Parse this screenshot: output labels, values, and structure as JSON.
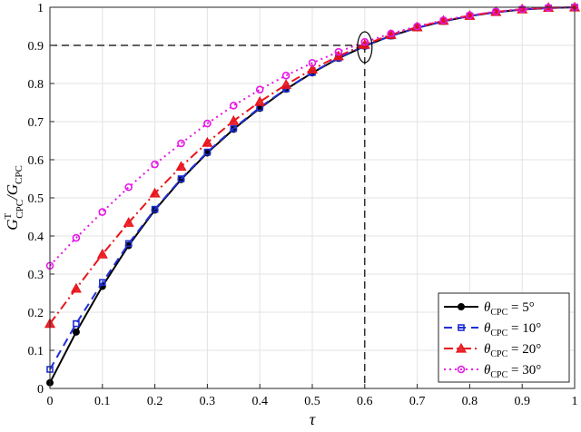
{
  "chart_data": {
    "type": "line",
    "xlabel": "τ",
    "ylabel": {
      "main": "G",
      "sup": "T",
      "sub1": "CPC",
      "slash": "/G",
      "sub2": "CPC"
    },
    "xlim": [
      0,
      1
    ],
    "ylim": [
      0,
      1
    ],
    "grid": true,
    "legend_position": "bottom-right",
    "x_ticks": [
      "0",
      "0.1",
      "0.2",
      "0.3",
      "0.4",
      "0.5",
      "0.6",
      "0.7",
      "0.8",
      "0.9",
      "1"
    ],
    "y_ticks": [
      "0",
      "0.1",
      "0.2",
      "0.3",
      "0.4",
      "0.5",
      "0.6",
      "0.7",
      "0.8",
      "0.9",
      "1"
    ],
    "x": [
      0,
      0.05,
      0.1,
      0.15,
      0.2,
      0.25,
      0.3,
      0.35,
      0.4,
      0.45,
      0.5,
      0.55,
      0.6,
      0.65,
      0.7,
      0.75,
      0.8,
      0.85,
      0.9,
      0.95,
      1
    ],
    "series": [
      {
        "name": "θ_CPC = 5°",
        "legend": {
          "sym": "θ",
          "sub": "CPC",
          "eq": " = 5°"
        },
        "color": "#000000",
        "dash": "",
        "marker": "dot",
        "values": [
          0.015,
          0.148,
          0.268,
          0.375,
          0.468,
          0.548,
          0.618,
          0.68,
          0.735,
          0.785,
          0.828,
          0.866,
          0.898,
          0.925,
          0.946,
          0.963,
          0.977,
          0.987,
          0.994,
          0.998,
          1.0
        ]
      },
      {
        "name": "θ_CPC = 10°",
        "legend": {
          "sym": "θ",
          "sub": "CPC",
          "eq": " = 10°"
        },
        "color": "#1f2fd6",
        "dash": "9,6",
        "marker": "square",
        "values": [
          0.05,
          0.17,
          0.278,
          0.38,
          0.47,
          0.55,
          0.62,
          0.682,
          0.737,
          0.786,
          0.829,
          0.867,
          0.899,
          0.925,
          0.946,
          0.963,
          0.977,
          0.987,
          0.994,
          0.998,
          1.0
        ]
      },
      {
        "name": "θ_CPC = 20°",
        "legend": {
          "sym": "θ",
          "sub": "CPC",
          "eq": " = 20°"
        },
        "color": "#e8141b",
        "dash": "10,4,2,4",
        "marker": "triangle",
        "values": [
          0.17,
          0.262,
          0.352,
          0.435,
          0.512,
          0.582,
          0.645,
          0.702,
          0.752,
          0.797,
          0.837,
          0.872,
          0.902,
          0.928,
          0.948,
          0.965,
          0.978,
          0.988,
          0.995,
          0.999,
          1.0
        ]
      },
      {
        "name": "θ_CPC = 30°",
        "legend": {
          "sym": "θ",
          "sub": "CPC",
          "eq": " = 30°"
        },
        "color": "#e617e6",
        "dash": "2,4",
        "marker": "circle",
        "values": [
          0.322,
          0.395,
          0.463,
          0.528,
          0.588,
          0.643,
          0.695,
          0.742,
          0.784,
          0.821,
          0.854,
          0.883,
          0.909,
          0.931,
          0.95,
          0.966,
          0.979,
          0.989,
          0.995,
          0.999,
          1.0
        ]
      }
    ],
    "annotation": {
      "x": 0.6,
      "y": 0.9
    }
  }
}
